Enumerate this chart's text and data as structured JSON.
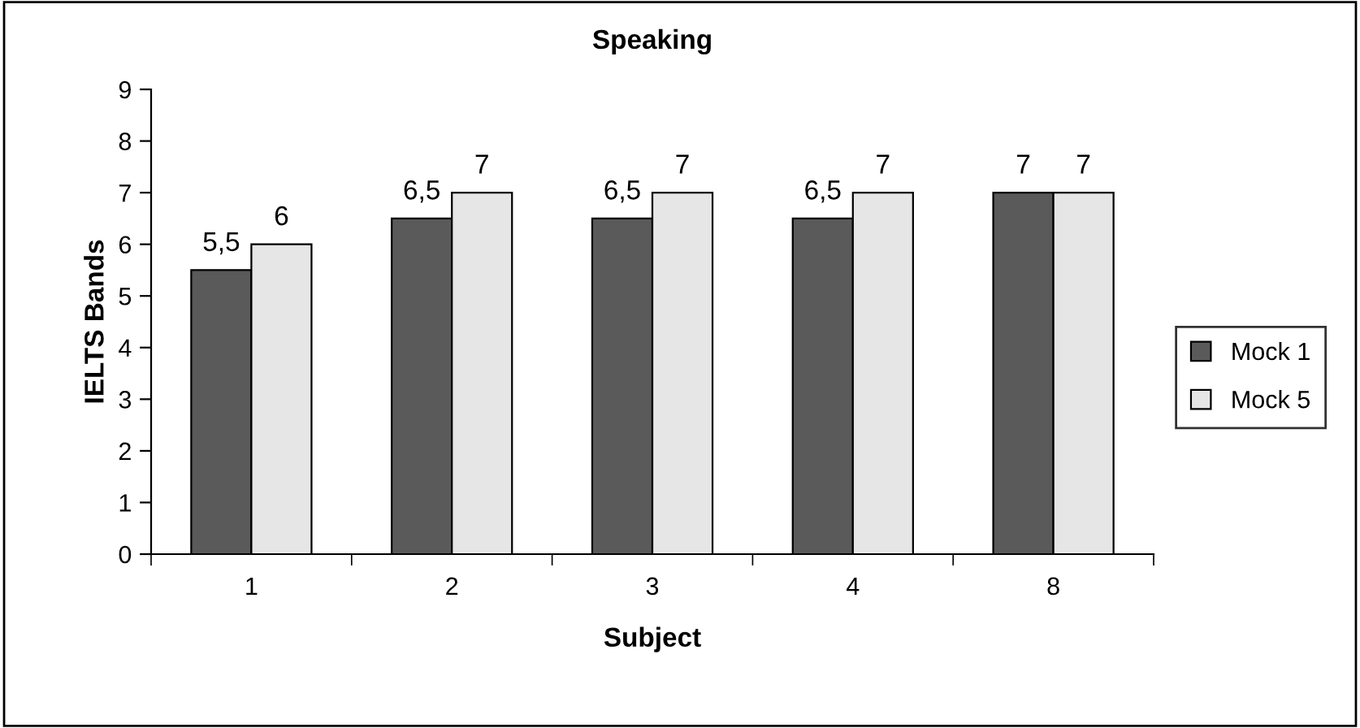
{
  "chart_data": {
    "type": "bar",
    "title": "Speaking",
    "xlabel": "Subject",
    "ylabel": "IELTS Bands",
    "categories": [
      "1",
      "2",
      "3",
      "4",
      "8"
    ],
    "series": [
      {
        "name": "Mock 1",
        "color": "#5a5a5a",
        "values": [
          5.5,
          6.5,
          6.5,
          6.5,
          7
        ],
        "value_labels": [
          "5,5",
          "6,5",
          "6,5",
          "6,5",
          "7"
        ]
      },
      {
        "name": "Mock 5",
        "color": "#e6e6e6",
        "values": [
          6,
          7,
          7,
          7,
          7
        ],
        "value_labels": [
          "6",
          "7",
          "7",
          "7",
          "7"
        ]
      }
    ],
    "ylim": [
      0,
      9
    ],
    "yticks": [
      0,
      1,
      2,
      3,
      4,
      5,
      6,
      7,
      8,
      9
    ],
    "grid": false,
    "legend": "right"
  }
}
